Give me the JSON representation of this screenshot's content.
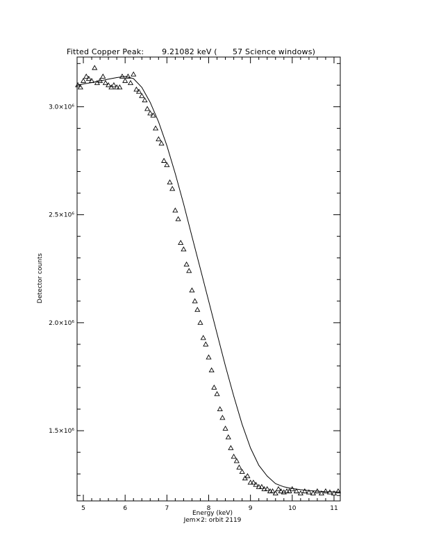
{
  "chart_data": {
    "type": "scatter",
    "title": "Fitted Copper Peak:       9.21082 keV (      57 Science windows)",
    "xlabel": "Energy (keV)",
    "ylabel": "Detector counts",
    "subtitle": "Jem×2: orbit 2119",
    "xlim": [
      4.85,
      11.15
    ],
    "ylim": [
      1175000,
      3230000
    ],
    "x_ticks": [
      5,
      6,
      7,
      8,
      9,
      10,
      11
    ],
    "x_tick_labels": [
      "5",
      "6",
      "7",
      "8",
      "9",
      "10",
      "11"
    ],
    "y_ticks": [
      1500000,
      2000000,
      2500000,
      3000000
    ],
    "y_tick_labels": [
      "1.5×10⁶",
      "2.0×10⁶",
      "2.5×10⁶",
      "3.0×10⁶"
    ],
    "grid": false,
    "marker": "triangle",
    "series": [
      {
        "style": "markers",
        "x": [
          4.87,
          4.93,
          5.0,
          5.07,
          5.13,
          5.2,
          5.27,
          5.33,
          5.4,
          5.47,
          5.53,
          5.6,
          5.67,
          5.73,
          5.8,
          5.87,
          5.93,
          6.0,
          6.07,
          6.13,
          6.2,
          6.27,
          6.33,
          6.4,
          6.47,
          6.53,
          6.6,
          6.67,
          6.73,
          6.8,
          6.87,
          6.93,
          7.0,
          7.07,
          7.13,
          7.2,
          7.27,
          7.33,
          7.4,
          7.47,
          7.53,
          7.6,
          7.67,
          7.73,
          7.8,
          7.87,
          7.93,
          8.0,
          8.07,
          8.13,
          8.2,
          8.27,
          8.33,
          8.4,
          8.47,
          8.53,
          8.6,
          8.67,
          8.73,
          8.8,
          8.87,
          8.93,
          9.0,
          9.07,
          9.13,
          9.2,
          9.27,
          9.33,
          9.4,
          9.47,
          9.53,
          9.6,
          9.67,
          9.73,
          9.8,
          9.87,
          9.93,
          10.0,
          10.1,
          10.2,
          10.3,
          10.4,
          10.5,
          10.6,
          10.7,
          10.8,
          10.9,
          11.0,
          11.1
        ],
        "y": [
          3100000,
          3090000,
          3120000,
          3140000,
          3130000,
          3120000,
          3180000,
          3110000,
          3120000,
          3140000,
          3110000,
          3100000,
          3090000,
          3100000,
          3090000,
          3090000,
          3140000,
          3120000,
          3140000,
          3110000,
          3150000,
          3080000,
          3070000,
          3050000,
          3030000,
          2990000,
          2970000,
          2960000,
          2900000,
          2850000,
          2830000,
          2750000,
          2730000,
          2650000,
          2620000,
          2520000,
          2480000,
          2370000,
          2340000,
          2270000,
          2240000,
          2150000,
          2100000,
          2060000,
          2000000,
          1930000,
          1900000,
          1840000,
          1780000,
          1700000,
          1670000,
          1600000,
          1560000,
          1510000,
          1470000,
          1420000,
          1380000,
          1360000,
          1330000,
          1310000,
          1280000,
          1290000,
          1260000,
          1260000,
          1250000,
          1240000,
          1240000,
          1230000,
          1230000,
          1220000,
          1220000,
          1210000,
          1230000,
          1220000,
          1215000,
          1220000,
          1220000,
          1230000,
          1220000,
          1210000,
          1220000,
          1215000,
          1210000,
          1220000,
          1210000,
          1220000,
          1215000,
          1210000,
          1220000
        ]
      },
      {
        "style": "line",
        "x": [
          4.85,
          5.0,
          5.2,
          5.4,
          5.6,
          5.8,
          6.0,
          6.2,
          6.4,
          6.6,
          6.8,
          7.0,
          7.2,
          7.4,
          7.6,
          7.8,
          8.0,
          8.2,
          8.4,
          8.6,
          8.8,
          9.0,
          9.2,
          9.4,
          9.6,
          9.8,
          10.0,
          10.2,
          10.4,
          10.6,
          10.8,
          11.0,
          11.15
        ],
        "y": [
          3100000,
          3105000,
          3112000,
          3120000,
          3128000,
          3135000,
          3140000,
          3130000,
          3090000,
          3020000,
          2930000,
          2820000,
          2690000,
          2550000,
          2400000,
          2250000,
          2100000,
          1950000,
          1800000,
          1660000,
          1530000,
          1420000,
          1340000,
          1290000,
          1255000,
          1240000,
          1232000,
          1227000,
          1223000,
          1220000,
          1218000,
          1217000,
          1216000
        ]
      }
    ]
  }
}
